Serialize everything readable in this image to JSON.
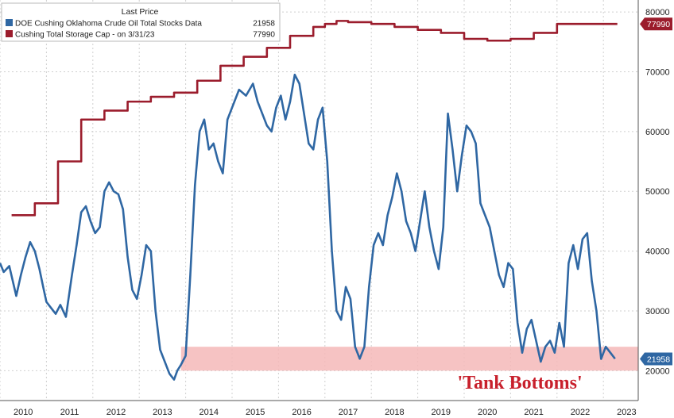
{
  "chart_data": {
    "type": "line",
    "title": "",
    "xlabel": "",
    "ylabel": "",
    "xlim": [
      2010.0,
      2023.75
    ],
    "ylim": [
      15000,
      82000
    ],
    "y_ticks": [
      20000,
      30000,
      40000,
      50000,
      60000,
      70000,
      80000
    ],
    "y_tick_labels": [
      "20000",
      "30000",
      "40000",
      "50000",
      "60000",
      "70000",
      "80000"
    ],
    "x_tick_labels": [
      "2010",
      "2011",
      "2012",
      "2013",
      "2014",
      "2015",
      "2016",
      "2017",
      "2018",
      "2019",
      "2020",
      "2021",
      "2022",
      "2023"
    ],
    "grid": true,
    "legend": {
      "header": "Last Price",
      "position": "top-left",
      "entries": [
        {
          "label": "DOE Cushing Oklahoma Crude Oil Total Stocks Data",
          "value": "21958",
          "color": "#2f67a3"
        },
        {
          "label": "Cushing Total Storage Cap -   on 3/31/23",
          "value": "77990",
          "color": "#9b1c2c"
        }
      ]
    },
    "last_value_badges": [
      {
        "text": "77990",
        "value": 77990,
        "color": "#9b1c2c"
      },
      {
        "text": "21958",
        "value": 21958,
        "color": "#2f67a3"
      }
    ],
    "band": {
      "y_from": 20000,
      "y_to": 24000,
      "x_from": 2013.9,
      "x_to": 2023.75,
      "color": "#f5b8b8"
    },
    "annotation": {
      "text": "'Tank Bottoms'",
      "x": 2021.2,
      "y": 17000,
      "color": "#c8202c"
    },
    "series": [
      {
        "name": "DOE Cushing Oklahoma Crude Oil Total Stocks Data",
        "color": "#2f67a3",
        "x": [
          2010.0,
          2010.08,
          2010.2,
          2010.35,
          2010.45,
          2010.55,
          2010.65,
          2010.75,
          2010.85,
          2010.93,
          2011.0,
          2011.1,
          2011.2,
          2011.3,
          2011.42,
          2011.55,
          2011.65,
          2011.75,
          2011.85,
          2011.95,
          2012.05,
          2012.15,
          2012.25,
          2012.35,
          2012.45,
          2012.55,
          2012.65,
          2012.75,
          2012.85,
          2012.95,
          2013.05,
          2013.15,
          2013.25,
          2013.35,
          2013.45,
          2013.55,
          2013.65,
          2013.75,
          2013.82,
          2013.9,
          2014.0,
          2014.1,
          2014.2,
          2014.3,
          2014.4,
          2014.5,
          2014.6,
          2014.7,
          2014.8,
          2014.9,
          2015.0,
          2015.15,
          2015.3,
          2015.45,
          2015.55,
          2015.65,
          2015.75,
          2015.85,
          2015.95,
          2016.05,
          2016.15,
          2016.25,
          2016.35,
          2016.45,
          2016.55,
          2016.65,
          2016.75,
          2016.85,
          2016.95,
          2017.05,
          2017.15,
          2017.25,
          2017.35,
          2017.45,
          2017.55,
          2017.65,
          2017.75,
          2017.85,
          2017.95,
          2018.05,
          2018.15,
          2018.25,
          2018.35,
          2018.45,
          2018.55,
          2018.65,
          2018.75,
          2018.85,
          2018.95,
          2019.05,
          2019.15,
          2019.25,
          2019.35,
          2019.45,
          2019.55,
          2019.65,
          2019.75,
          2019.85,
          2019.95,
          2020.05,
          2020.15,
          2020.25,
          2020.35,
          2020.45,
          2020.55,
          2020.65,
          2020.75,
          2020.85,
          2020.95,
          2021.05,
          2021.15,
          2021.25,
          2021.35,
          2021.45,
          2021.55,
          2021.65,
          2021.75,
          2021.85,
          2021.95,
          2022.05,
          2022.15,
          2022.25,
          2022.35,
          2022.45,
          2022.55,
          2022.65,
          2022.75,
          2022.85,
          2022.95,
          2023.05,
          2023.15,
          2023.25
        ],
        "values": [
          38000,
          36500,
          37500,
          32500,
          36000,
          39000,
          41500,
          40000,
          37000,
          34000,
          31500,
          30500,
          29500,
          31000,
          29000,
          36000,
          41000,
          46500,
          47500,
          45000,
          43000,
          44000,
          50000,
          51500,
          50000,
          49500,
          47000,
          39000,
          33500,
          32000,
          36000,
          41000,
          40000,
          30000,
          23500,
          21500,
          19500,
          18500,
          20000,
          21000,
          22500,
          36000,
          51000,
          60000,
          62000,
          57000,
          58000,
          55000,
          53000,
          62000,
          64000,
          67000,
          66000,
          68000,
          65000,
          63000,
          61000,
          60000,
          64000,
          66000,
          62000,
          65000,
          69500,
          68000,
          63000,
          58000,
          57000,
          62000,
          64000,
          55000,
          40000,
          30000,
          28500,
          34000,
          32000,
          24000,
          22000,
          24000,
          34000,
          41000,
          43000,
          41000,
          46000,
          49000,
          53000,
          50000,
          45000,
          43000,
          40000,
          45000,
          50000,
          44000,
          40000,
          37000,
          44000,
          63000,
          57000,
          50000,
          56000,
          61000,
          60000,
          58000,
          48000,
          46000,
          44000,
          40000,
          36000,
          34000,
          38000,
          37000,
          28000,
          23000,
          27000,
          28500,
          25000,
          21500,
          24000,
          25000,
          23000,
          28000,
          24000,
          38000,
          41000,
          37000,
          42000,
          43000,
          35000,
          30000,
          21958,
          24000,
          23000,
          22000
        ],
        "x_last": 2023.32,
        "y_last": 21958
      },
      {
        "name": "Cushing Total Storage Cap -   on 3/31/23",
        "color": "#9b1c2c",
        "step": true,
        "x": [
          2010.25,
          2010.75,
          2011.25,
          2011.75,
          2012.25,
          2012.75,
          2013.25,
          2013.75,
          2014.25,
          2014.75,
          2015.25,
          2015.75,
          2016.25,
          2016.75,
          2017.0,
          2017.25,
          2017.5,
          2018.0,
          2018.5,
          2019.0,
          2019.5,
          2020.0,
          2020.5,
          2021.0,
          2021.5,
          2022.0,
          2022.5,
          2023.3
        ],
        "values": [
          46000,
          48000,
          55000,
          62000,
          63500,
          65000,
          65800,
          66500,
          68500,
          71000,
          72500,
          74000,
          76000,
          77500,
          78000,
          78500,
          78300,
          78000,
          77500,
          77000,
          76500,
          75500,
          75200,
          75500,
          76500,
          78000,
          78000,
          78000
        ]
      }
    ]
  }
}
